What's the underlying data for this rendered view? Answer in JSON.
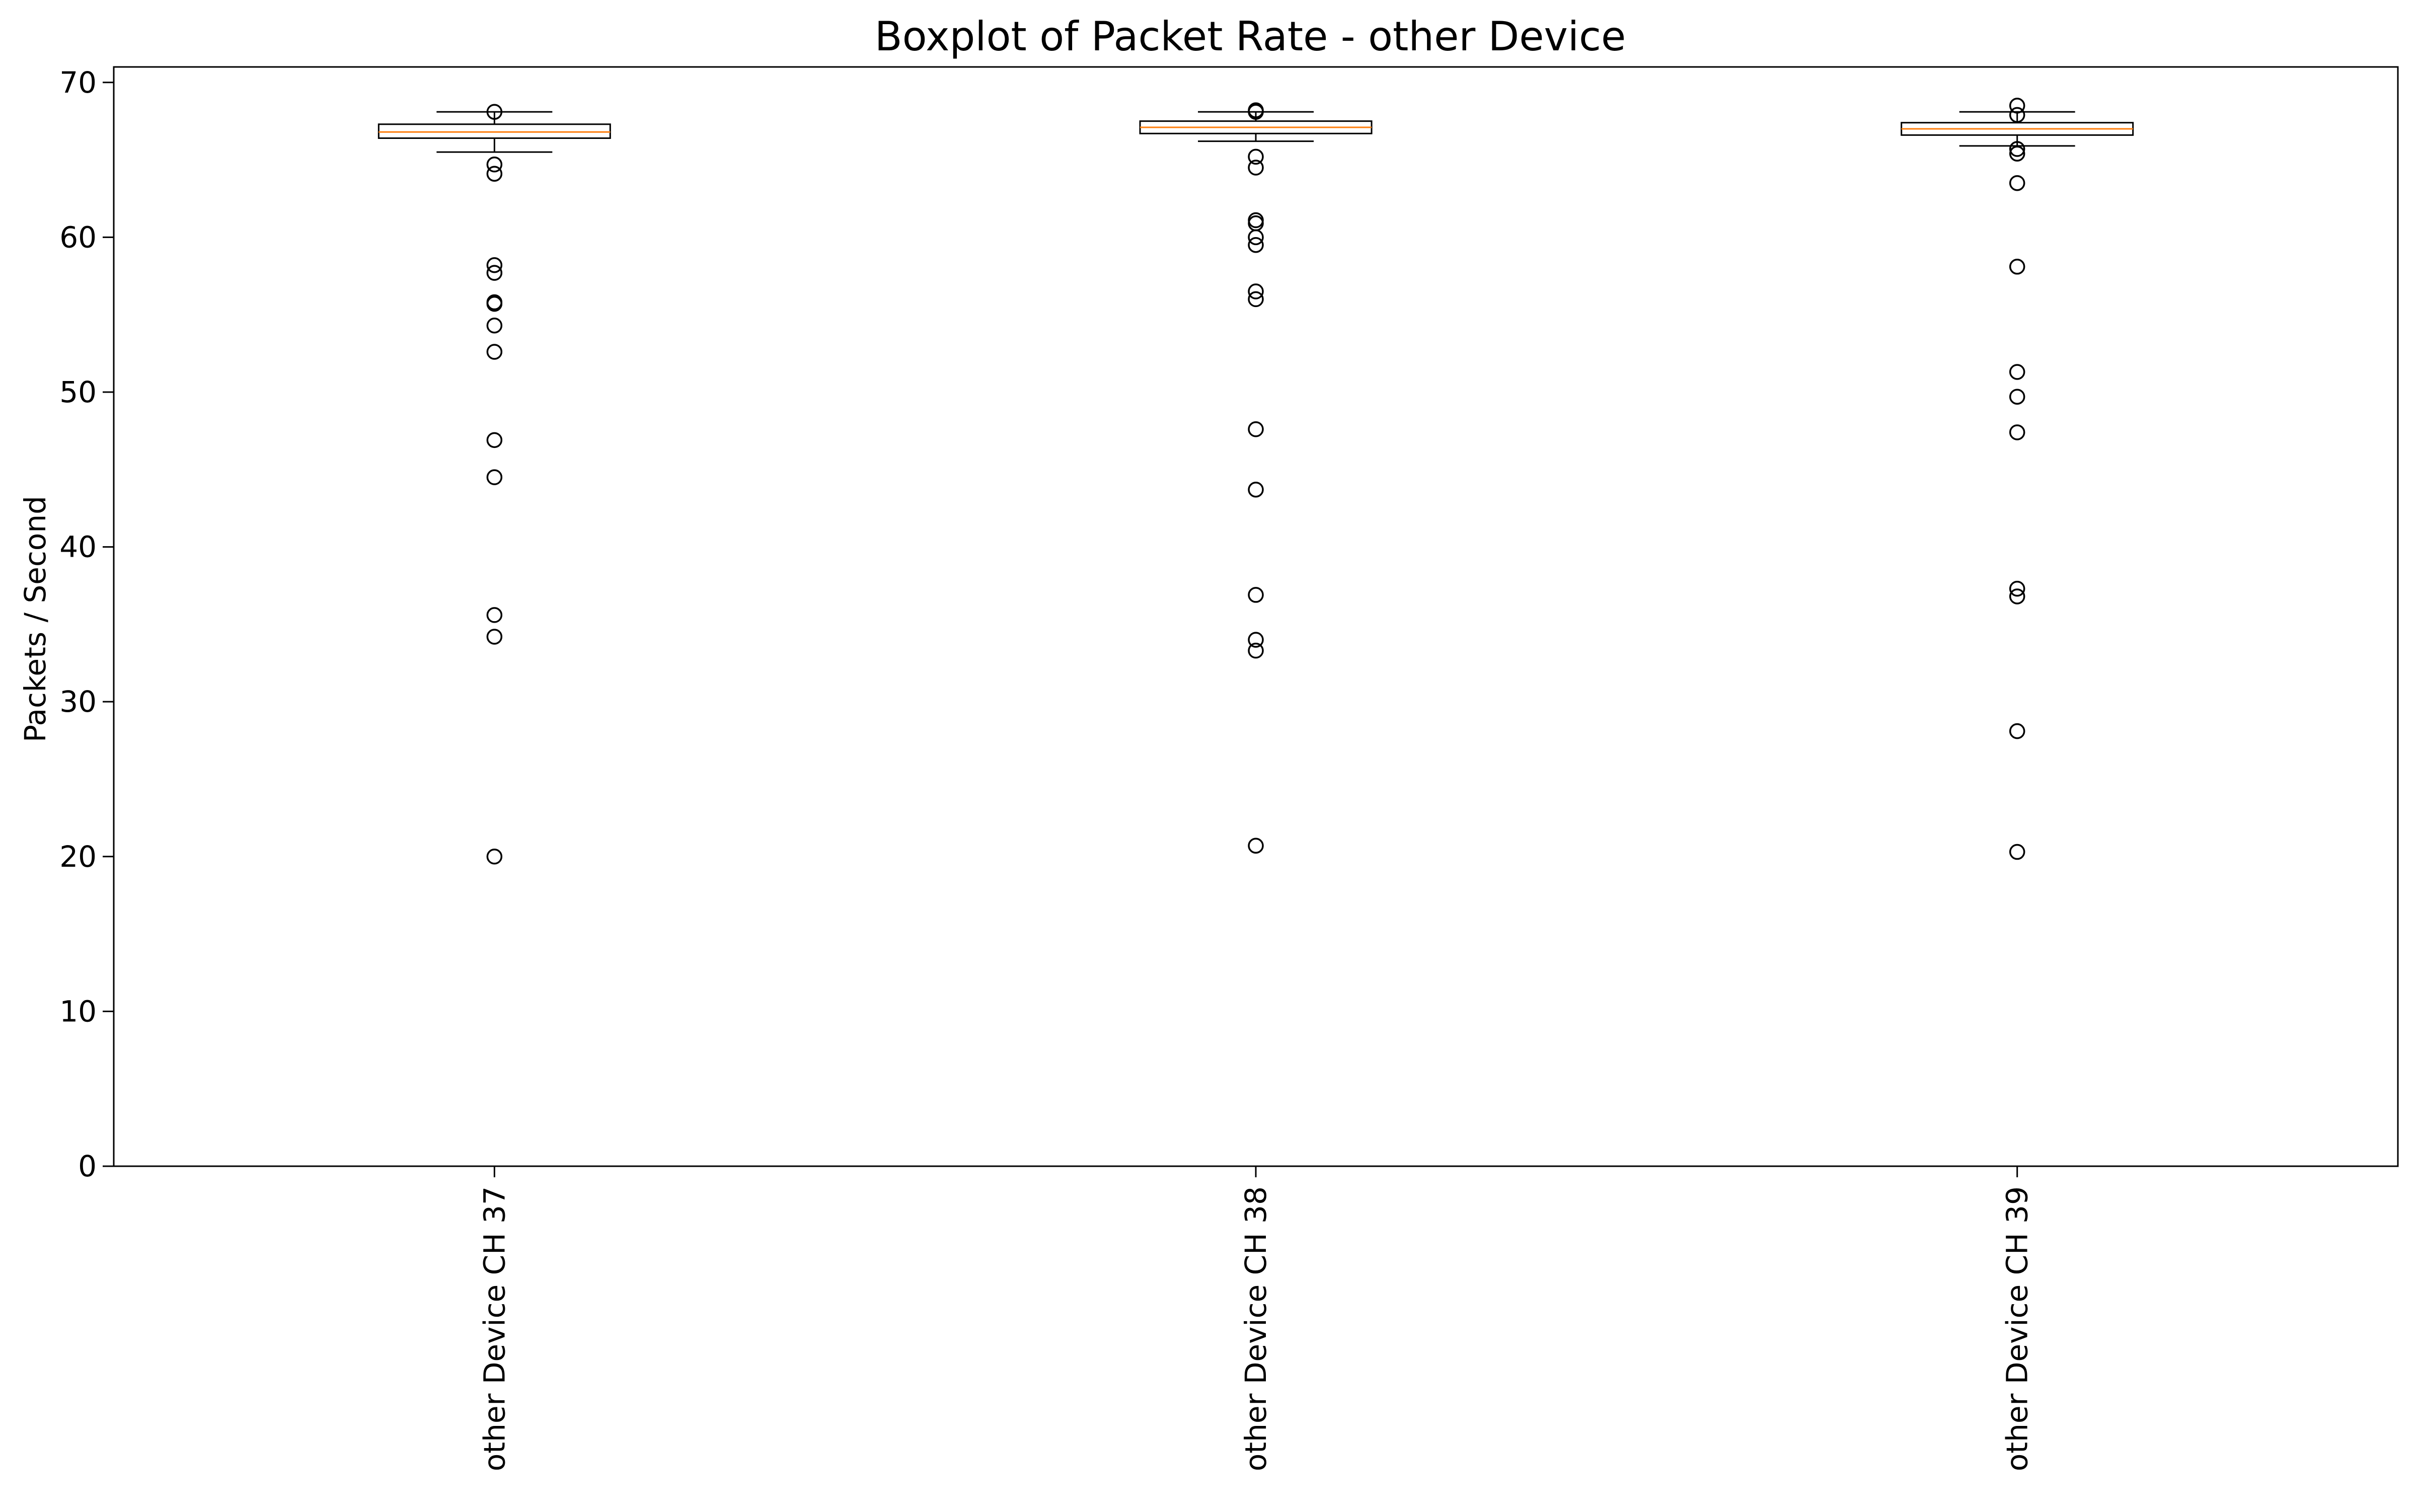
{
  "chart_data": {
    "type": "boxplot",
    "title": "Boxplot of Packet Rate - other Device",
    "xlabel": "",
    "ylabel": "Packets / Second",
    "ylim": [
      0,
      71
    ],
    "yticks": [
      0,
      10,
      20,
      30,
      40,
      50,
      60,
      70
    ],
    "grid": false,
    "categories": [
      "other Device CH 37",
      "other Device CH 38",
      "other Device CH 39"
    ],
    "colors": {
      "box": "#000000",
      "median": "#ff7f0e",
      "flier": "#000000"
    },
    "boxes": [
      {
        "category": "other Device CH 37",
        "whisker_low": 65.5,
        "q1": 66.4,
        "median": 66.8,
        "q3": 67.3,
        "whisker_high": 68.1,
        "outliers": [
          68.1,
          64.7,
          64.1,
          58.2,
          57.7,
          55.8,
          55.7,
          54.3,
          52.6,
          46.9,
          44.5,
          35.6,
          34.2,
          20.0
        ]
      },
      {
        "category": "other Device CH 38",
        "whisker_low": 66.2,
        "q1": 66.7,
        "median": 67.1,
        "q3": 67.5,
        "whisker_high": 68.1,
        "outliers": [
          68.1,
          68.2,
          65.2,
          64.5,
          61.1,
          60.9,
          60.0,
          59.5,
          56.5,
          56.0,
          47.6,
          43.7,
          36.9,
          34.0,
          33.3,
          20.7
        ]
      },
      {
        "category": "other Device CH 39",
        "whisker_low": 65.9,
        "q1": 66.6,
        "median": 67.0,
        "q3": 67.4,
        "whisker_high": 68.1,
        "outliers": [
          68.5,
          67.9,
          65.7,
          65.4,
          63.5,
          58.1,
          51.3,
          49.7,
          47.4,
          37.3,
          36.8,
          28.1,
          20.3
        ]
      }
    ]
  }
}
